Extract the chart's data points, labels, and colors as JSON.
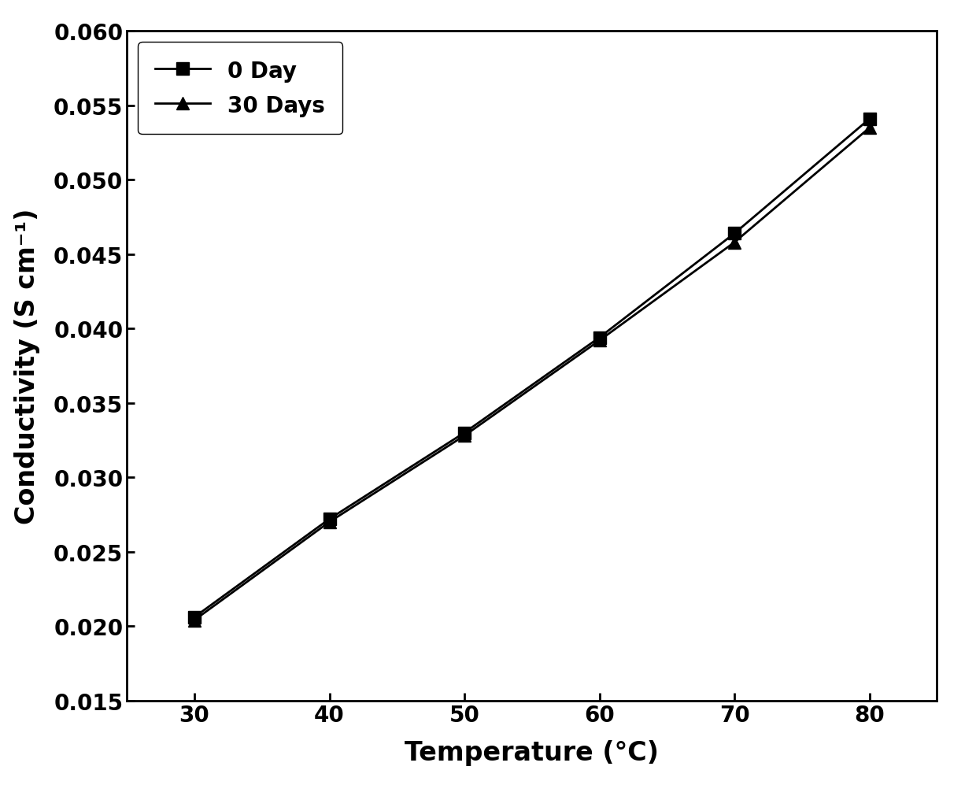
{
  "temperature": [
    30,
    40,
    50,
    60,
    70,
    80
  ],
  "day0": [
    0.0206,
    0.0272,
    0.033,
    0.0394,
    0.0464,
    0.0541
  ],
  "day30": [
    0.0204,
    0.027,
    0.0328,
    0.0392,
    0.0458,
    0.0535
  ],
  "label_day0": "0 Day",
  "label_day30": "30 Days",
  "xlabel": "Temperature (°C)",
  "ylabel": "Conductivity (S cm⁻¹)",
  "xlim": [
    25,
    85
  ],
  "ylim": [
    0.015,
    0.06
  ],
  "xticks": [
    30,
    40,
    50,
    60,
    70,
    80
  ],
  "yticks": [
    0.015,
    0.02,
    0.025,
    0.03,
    0.035,
    0.04,
    0.045,
    0.05,
    0.055,
    0.06
  ],
  "line_color": "#000000",
  "marker_day0": "s",
  "marker_day30": "^",
  "markersize": 11,
  "linewidth": 2.0,
  "legend_fontsize": 20,
  "axis_label_fontsize": 24,
  "tick_fontsize": 20,
  "background_color": "#ffffff",
  "spine_linewidth": 2.0
}
